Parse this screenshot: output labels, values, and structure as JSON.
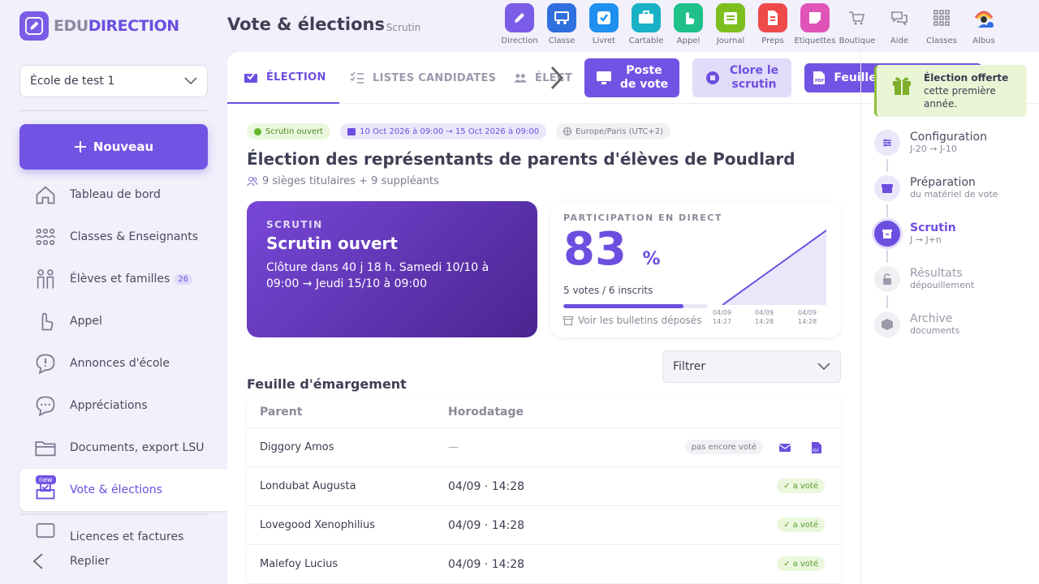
{
  "app": {
    "logo_prefix": "EDU",
    "logo_main": "DIRECTION",
    "page_title": "Vote & élections",
    "page_subtitle": "– Scrutin"
  },
  "apps": [
    {
      "label": "Direction",
      "color": "#7b5ce6",
      "icon": "pen-icon"
    },
    {
      "label": "Classe",
      "color": "#2f6fde",
      "icon": "classroom-icon"
    },
    {
      "label": "Livret",
      "color": "#1f8ff0",
      "icon": "checkbox-icon"
    },
    {
      "label": "Cartable",
      "color": "#18b1c6",
      "icon": "briefcase-icon"
    },
    {
      "label": "Appel",
      "color": "#1fc08a",
      "icon": "hand-icon"
    },
    {
      "label": "Journal",
      "color": "#7cbf1f",
      "icon": "calendar-icon"
    },
    {
      "label": "Preps",
      "color": "#ef4a4a",
      "icon": "document-icon"
    },
    {
      "label": "Etiquettes",
      "color": "#e054b8",
      "icon": "sticker-icon"
    },
    {
      "label": "Boutique",
      "color": "#8a8a9a",
      "icon": "cart-icon"
    },
    {
      "label": "Aide",
      "color": "#8a8a9a",
      "icon": "chat-icon"
    },
    {
      "label": "Classes",
      "color": "#8a8a9a",
      "icon": "grid-icon"
    },
    {
      "label": "Albus",
      "color": "#8a8a9a",
      "icon": "avatar-icon"
    }
  ],
  "sidebar": {
    "school": "École de test 1",
    "new_button": "Nouveau",
    "items": [
      {
        "label": "Tableau de bord",
        "icon": "home-icon"
      },
      {
        "label": "Classes & Enseignants",
        "icon": "people-group-icon"
      },
      {
        "label": "Élèves et familles",
        "icon": "family-icon",
        "badge": "26"
      },
      {
        "label": "Appel",
        "icon": "hand-icon"
      },
      {
        "label": "Annonces d'école",
        "icon": "alert-bubble-icon"
      },
      {
        "label": "Appréciations",
        "icon": "comment-icon"
      },
      {
        "label": "Documents, export LSU",
        "icon": "folder-icon"
      },
      {
        "label": "Vote & élections",
        "icon": "ballot-icon",
        "tag": "new",
        "active": true
      },
      {
        "label": "Licences et factures",
        "icon": "license-icon"
      }
    ],
    "collapse": "Replier"
  },
  "tabs": [
    {
      "label": "ÉLECTION",
      "active": true
    },
    {
      "label": "LISTES CANDIDATES"
    },
    {
      "label": "ÉLECT"
    }
  ],
  "header_buttons": {
    "poste": "Poste\nde vote",
    "clore": "Clore le\nscrutin",
    "feuille": "Feuille d'émargement"
  },
  "election": {
    "status_chip": "Scrutin ouvert",
    "date_chip": "10 Oct 2026 à 09:00 → 15 Oct 2026 à 09:00",
    "tz_chip": "Europe/Paris (UTC+2)",
    "title": "Élection des représentants de parents d'élèves de Poudlard",
    "seats": "9 sièges titulaires + 9 suppléants"
  },
  "scrutin_card": {
    "kicker": "SCRUTIN",
    "title": "Scrutin ouvert",
    "desc": "Clôture dans 40 j 18 h. Samedi 10/10 à 09:00 → Jeudi 15/10 à 09:00"
  },
  "participation": {
    "kicker": "PARTICIPATION EN DIRECT",
    "value": "83",
    "unit": "%",
    "votes": "5 votes / 6 inscrits",
    "fraction": 0.83,
    "link": "Voir les bulletins déposés",
    "spark_labels": [
      [
        "04/09",
        "14:27"
      ],
      [
        "04/09",
        "14:28"
      ],
      [
        "04/09",
        "14:28"
      ]
    ]
  },
  "chart_data": {
    "type": "area",
    "x": [
      "04/09 14:27",
      "04/09 14:28",
      "04/09 14:28"
    ],
    "values": [
      0,
      50,
      100
    ],
    "ylim": [
      0,
      100
    ]
  },
  "emargement": {
    "title": "Feuille d'émargement",
    "filter": "Filtrer",
    "headers": [
      "Parent",
      "Horodatage"
    ],
    "rows": [
      {
        "parent": "Diggory Amos",
        "time": "—",
        "status": "pas encore voté",
        "voted": false
      },
      {
        "parent": "Londubat Augusta",
        "time": "04/09 · 14:28",
        "status": "a voté",
        "voted": true
      },
      {
        "parent": "Lovegood Xenophilius",
        "time": "04/09 · 14:28",
        "status": "a voté",
        "voted": true
      },
      {
        "parent": "Malefoy Lucius",
        "time": "04/09 · 14:28",
        "status": "a voté",
        "voted": true
      }
    ]
  },
  "right_panel": {
    "offer_title": "Élection offerte",
    "offer_text": "cette première année.",
    "steps": [
      {
        "name": "Configuration",
        "sub": "J-20 → J-10",
        "state": "done"
      },
      {
        "name": "Préparation",
        "sub": "du matériel de vote",
        "state": "done"
      },
      {
        "name": "Scrutin",
        "sub": "J → J+n",
        "state": "current"
      },
      {
        "name": "Résultats",
        "sub": "dépouillement",
        "state": "todo"
      },
      {
        "name": "Archive",
        "sub": "documents",
        "state": "todo"
      }
    ]
  },
  "colors": {
    "accent": "#6d4fe0",
    "voted_bg": "#eaf7dd",
    "voted_fg": "#5a9a2a"
  }
}
